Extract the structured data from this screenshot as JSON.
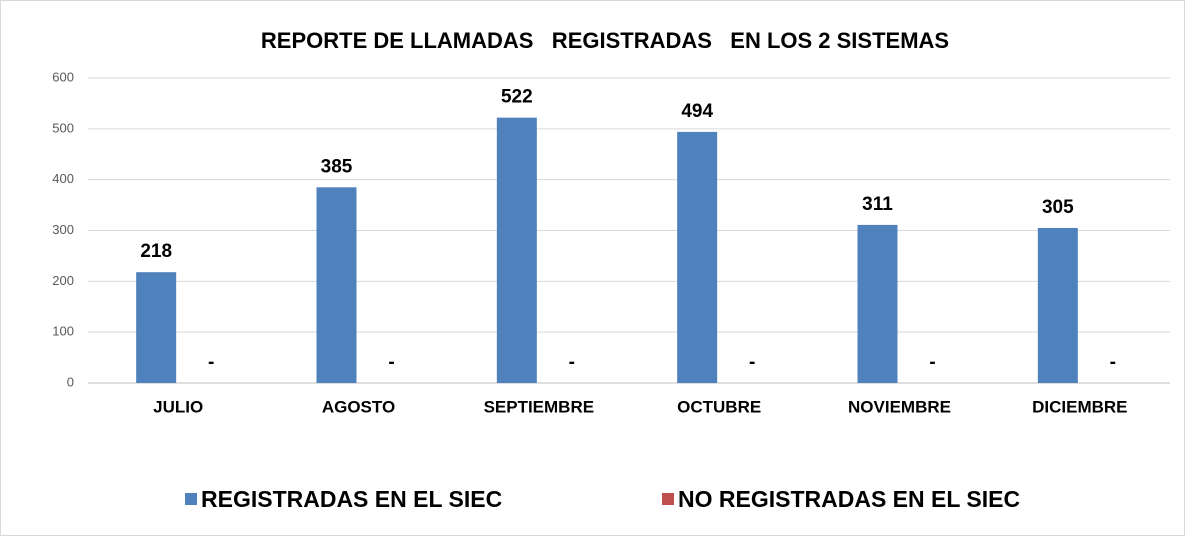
{
  "chart_data": {
    "type": "bar",
    "title": "REPORTE DE LLAMADAS   REGISTRADAS   EN LOS 2 SISTEMAS",
    "categories": [
      "JULIO",
      "AGOSTO",
      "SEPTIEMBRE",
      "OCTUBRE",
      "NOVIEMBRE",
      "DICIEMBRE"
    ],
    "series": [
      {
        "name": "REGISTRADAS EN EL SIEC",
        "color": "#4f81bd",
        "values": [
          218,
          385,
          522,
          494,
          311,
          305
        ]
      },
      {
        "name": "NO REGISTRADAS EN EL SIEC",
        "color": "#c0504d",
        "values": [
          0,
          0,
          0,
          0,
          0,
          0
        ],
        "value_labels": [
          "-",
          "-",
          "-",
          "-",
          "-",
          "-"
        ]
      }
    ],
    "ylim": [
      0,
      600
    ],
    "yticks": [
      0,
      100,
      200,
      300,
      400,
      500,
      600
    ],
    "grid": true,
    "legend": "bottom"
  }
}
